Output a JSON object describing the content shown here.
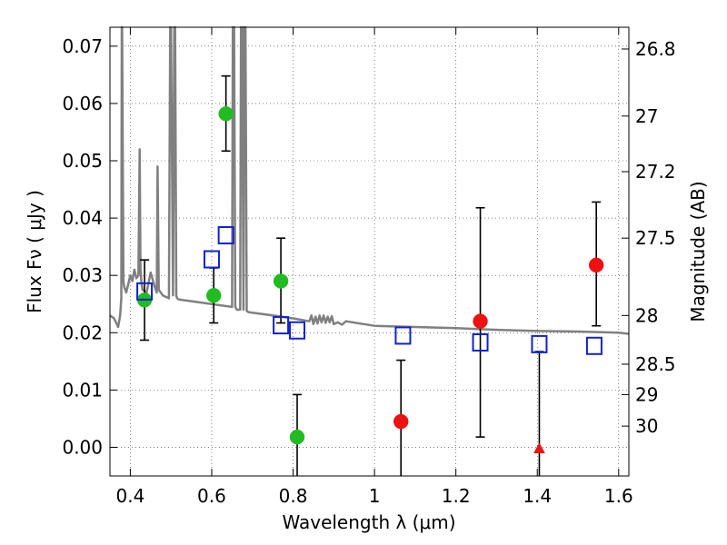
{
  "chart_data": {
    "type": "scatter",
    "title": "",
    "xlabel": "Wavelength  λ (μm)",
    "ylabel": "Flux  Fν  ( μJy )",
    "y2label": "Magnitude (AB)",
    "xlim": [
      0.35,
      1.625
    ],
    "ylim": [
      -0.005,
      0.0733
    ],
    "grid": true,
    "x_ticks": [
      0.4,
      0.6,
      0.8,
      1.0,
      1.2,
      1.4,
      1.6
    ],
    "x_tick_labels": [
      "0.4",
      "0.6",
      "0.8",
      "1",
      "1.2",
      "1.4",
      "1.6"
    ],
    "y_ticks": [
      0.0,
      0.01,
      0.02,
      0.03,
      0.04,
      0.05,
      0.06,
      0.07
    ],
    "y_tick_labels": [
      "0.00",
      "0.01",
      "0.02",
      "0.03",
      "0.04",
      "0.05",
      "0.06",
      "0.07"
    ],
    "y2_ticks": [
      {
        "label": "26.8",
        "flux": 0.0695
      },
      {
        "label": "27",
        "flux": 0.0578
      },
      {
        "label": "27.2",
        "flux": 0.0481
      },
      {
        "label": "27.5",
        "flux": 0.0365
      },
      {
        "label": "28",
        "flux": 0.023
      },
      {
        "label": "28.5",
        "flux": 0.0145
      },
      {
        "label": "29",
        "flux": 0.0092
      },
      {
        "label": "30",
        "flux": 0.0037
      }
    ],
    "series": [
      {
        "marker": "circle",
        "color": "#22bb22",
        "points": [
          {
            "x": 0.435,
            "y": 0.0257,
            "err_low": 0.0187,
            "err_high": 0.0327
          },
          {
            "x": 0.605,
            "y": 0.0265,
            "err_low": 0.0217,
            "err_high": 0.0313
          },
          {
            "x": 0.635,
            "y": 0.0582,
            "err_low": 0.0517,
            "err_high": 0.0648
          },
          {
            "x": 0.77,
            "y": 0.029,
            "err_low": 0.0217,
            "err_high": 0.0365
          },
          {
            "x": 0.81,
            "y": 0.0018,
            "err_low": -0.0055,
            "err_high": 0.0092
          }
        ]
      },
      {
        "marker": "circle",
        "color": "#ee1111",
        "points": [
          {
            "x": 1.065,
            "y": 0.0045,
            "err_low": -0.0055,
            "err_high": 0.0152
          },
          {
            "x": 1.26,
            "y": 0.022,
            "err_low": 0.0018,
            "err_high": 0.0418
          },
          {
            "x": 1.545,
            "y": 0.0318,
            "err_low": 0.0212,
            "err_high": 0.0428
          }
        ]
      },
      {
        "marker": "triangle",
        "color": "#ee1111",
        "points": [
          {
            "x": 1.405,
            "y": -0.0002,
            "err_low": -0.0055,
            "err_high": 0.0167
          }
        ]
      },
      {
        "marker": "square",
        "color": "#1122cc",
        "points": [
          {
            "x": 0.435,
            "y": 0.0272
          },
          {
            "x": 0.6,
            "y": 0.0328
          },
          {
            "x": 0.635,
            "y": 0.037
          },
          {
            "x": 0.77,
            "y": 0.0213
          },
          {
            "x": 0.81,
            "y": 0.0204
          },
          {
            "x": 1.07,
            "y": 0.0195
          },
          {
            "x": 1.26,
            "y": 0.0183
          },
          {
            "x": 1.405,
            "y": 0.018
          },
          {
            "x": 1.54,
            "y": 0.0177
          }
        ]
      }
    ],
    "model_spectrum": {
      "color": "#808080",
      "x": [
        0.35,
        0.36,
        0.37,
        0.375,
        0.378,
        0.379,
        0.38,
        0.383,
        0.385,
        0.39,
        0.395,
        0.4,
        0.405,
        0.41,
        0.415,
        0.42,
        0.423,
        0.425,
        0.427,
        0.43,
        0.44,
        0.45,
        0.46,
        0.465,
        0.467,
        0.47,
        0.48,
        0.495,
        0.498,
        0.5,
        0.505,
        0.508,
        0.51,
        0.513,
        0.515,
        0.52,
        0.55,
        0.6,
        0.65,
        0.652,
        0.655,
        0.658,
        0.662,
        0.67,
        0.672,
        0.675,
        0.678,
        0.68,
        0.683,
        0.686,
        0.69,
        0.7,
        0.75,
        0.8,
        0.84,
        0.845,
        0.85,
        0.855,
        0.86,
        0.865,
        0.87,
        0.875,
        0.88,
        0.885,
        0.89,
        0.895,
        0.9,
        0.91,
        0.92,
        0.93,
        1.0,
        1.1,
        1.2,
        1.3,
        1.4,
        1.5,
        1.6,
        1.625
      ],
      "y": [
        0.023,
        0.0225,
        0.021,
        0.023,
        0.026,
        0.08,
        0.08,
        0.029,
        0.028,
        0.027,
        0.0285,
        0.03,
        0.029,
        0.031,
        0.0295,
        0.03,
        0.052,
        0.031,
        0.029,
        0.0275,
        0.027,
        0.0305,
        0.028,
        0.027,
        0.049,
        0.0275,
        0.0265,
        0.026,
        0.08,
        0.08,
        0.0265,
        0.08,
        0.08,
        0.0265,
        0.026,
        0.0258,
        0.0255,
        0.025,
        0.0245,
        0.08,
        0.08,
        0.0245,
        0.024,
        0.024,
        0.08,
        0.08,
        0.024,
        0.08,
        0.08,
        0.0238,
        0.0236,
        0.0235,
        0.023,
        0.0225,
        0.022,
        0.023,
        0.0215,
        0.0228,
        0.0216,
        0.023,
        0.0218,
        0.023,
        0.0217,
        0.0228,
        0.0218,
        0.0229,
        0.0215,
        0.0218,
        0.0214,
        0.022,
        0.0212,
        0.021,
        0.0208,
        0.0205,
        0.0203,
        0.0202,
        0.02,
        0.0198
      ]
    }
  }
}
